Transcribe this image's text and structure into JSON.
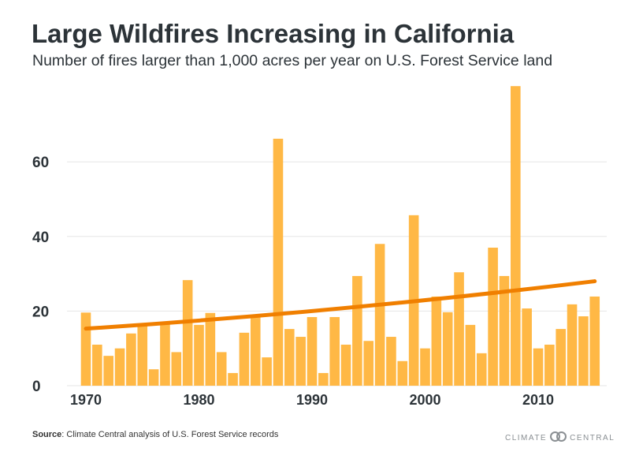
{
  "title": "Large Wildfires Increasing in California",
  "subtitle": "Number of fires larger than 1,000 acres per year on U.S. Forest Service land",
  "source_label": "Source",
  "source_text": ": Climate Central analysis of U.S. Forest Service records",
  "logo_left": "CLIMATE",
  "logo_right": "CENTRAL",
  "chart_data": {
    "type": "bar",
    "title": "Large Wildfires Increasing in California",
    "xlabel": "",
    "ylabel": "",
    "ylim": [
      0,
      82
    ],
    "yticks": [
      0,
      20,
      40,
      60
    ],
    "xticks": [
      1970,
      1980,
      1990,
      2000,
      2010
    ],
    "grid": true,
    "bar_color": "#FFB845",
    "trend_color": "#F07F00",
    "x": [
      1970,
      1971,
      1972,
      1973,
      1974,
      1975,
      1976,
      1977,
      1978,
      1979,
      1980,
      1981,
      1982,
      1983,
      1984,
      1985,
      1986,
      1987,
      1988,
      1989,
      1990,
      1991,
      1992,
      1993,
      1994,
      1995,
      1996,
      1997,
      1998,
      1999,
      2000,
      2001,
      2002,
      2003,
      2004,
      2005,
      2006,
      2007,
      2008,
      2009,
      2010,
      2011,
      2012,
      2013,
      2014,
      2015
    ],
    "values": [
      19.6,
      11,
      8,
      10,
      14,
      16,
      4.4,
      16.5,
      9,
      28.3,
      16.3,
      19.5,
      9,
      3.4,
      14.2,
      18.5,
      7.6,
      66.2,
      15.2,
      13.1,
      18.4,
      3.4,
      18.4,
      11,
      29.4,
      12,
      38,
      13.1,
      6.6,
      45.7,
      10,
      23.9,
      19.7,
      30.4,
      16.3,
      8.7,
      37,
      29.4,
      80.3,
      20.7,
      10,
      11,
      15.2,
      21.8,
      18.6,
      23.9
    ],
    "trend": {
      "start": [
        1970,
        15.3
      ],
      "end": [
        2015,
        28
      ]
    }
  }
}
